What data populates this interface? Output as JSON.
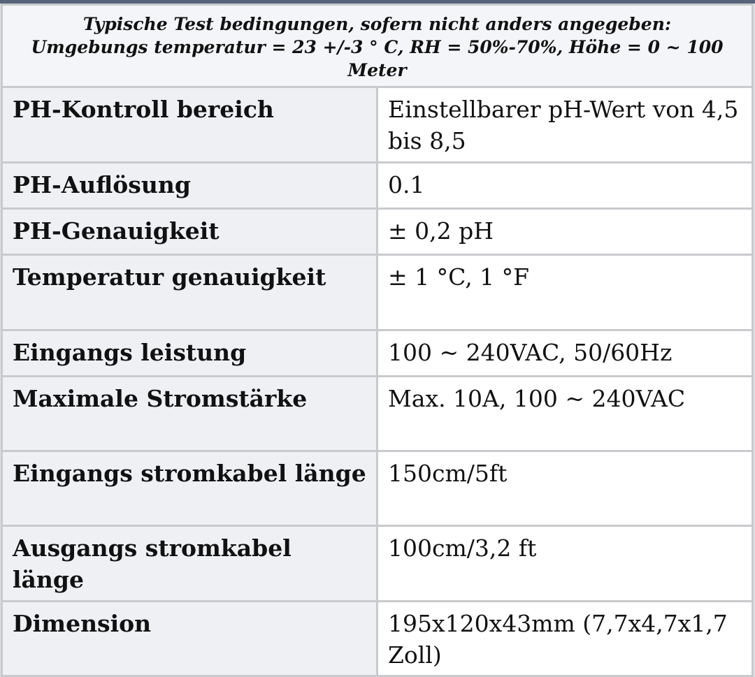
{
  "header": {
    "line1": "Typische Test bedingungen, sofern nicht anders angegeben:",
    "line2": "Umgebungs temperatur = 23 +/-3 ° C, RH = 50%-70%, Höhe = 0 ~ 100 Meter"
  },
  "rows": [
    {
      "key": "PH-Kontroll bereich",
      "value": "Einstellbarer pH-Wert von 4,5 bis 8,5"
    },
    {
      "key": "PH-Auflösung",
      "value": "0.1"
    },
    {
      "key": "PH-Genauigkeit",
      "value": "± 0,2 pH"
    },
    {
      "key": "Temperatur genauigkeit",
      "value": "± 1 °C, 1 °F"
    },
    {
      "key": "Eingangs leistung",
      "value": "100 ~ 240VAC, 50/60Hz"
    },
    {
      "key": "Maximale Stromstärke",
      "value": "Max. 10A, 100 ~ 240VAC"
    },
    {
      "key": "Eingangs stromkabel länge",
      "value": "150cm/5ft"
    },
    {
      "key": "Ausgangs stromkabel länge",
      "value": "100cm/3,2 ft"
    },
    {
      "key": "Dimension",
      "value": "195x120x43mm (7,7x4,7x1,7 Zoll)"
    }
  ]
}
